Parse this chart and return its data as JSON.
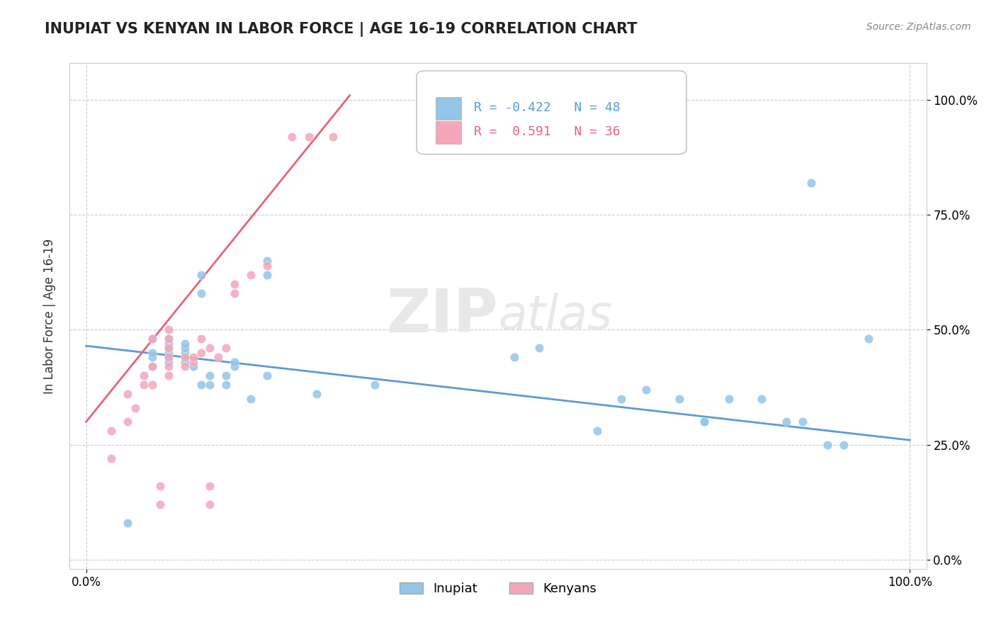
{
  "title": "INUPIAT VS KENYAN IN LABOR FORCE | AGE 16-19 CORRELATION CHART",
  "source": "Source: ZipAtlas.com",
  "ylabel": "In Labor Force | Age 16-19",
  "xlim": [
    -0.02,
    1.02
  ],
  "ylim": [
    -0.02,
    1.08
  ],
  "xtick_positions": [
    0.0,
    1.0
  ],
  "xtick_labels": [
    "0.0%",
    "100.0%"
  ],
  "ytick_positions": [
    0.0,
    0.25,
    0.5,
    0.75,
    1.0
  ],
  "ytick_labels": [
    "0.0%",
    "25.0%",
    "50.0%",
    "75.0%",
    "100.0%"
  ],
  "inupiat_R": "-0.422",
  "inupiat_N": "48",
  "kenyan_R": "0.591",
  "kenyan_N": "36",
  "inupiat_color": "#92C5E8",
  "kenyan_color": "#F4A7B9",
  "inupiat_line_color": "#5B9BD5",
  "kenyan_line_color": "#E8627A",
  "watermark_zip": "ZIP",
  "watermark_atlas": "atlas",
  "background_color": "#FFFFFF",
  "inupiat_scatter_x": [
    0.05,
    0.14,
    0.22,
    0.22,
    0.14,
    0.08,
    0.08,
    0.08,
    0.08,
    0.1,
    0.1,
    0.1,
    0.1,
    0.1,
    0.1,
    0.12,
    0.12,
    0.12,
    0.12,
    0.12,
    0.13,
    0.14,
    0.15,
    0.15,
    0.17,
    0.17,
    0.18,
    0.18,
    0.2,
    0.22,
    0.28,
    0.35,
    0.52,
    0.55,
    0.62,
    0.65,
    0.68,
    0.72,
    0.75,
    0.75,
    0.78,
    0.82,
    0.85,
    0.87,
    0.88,
    0.9,
    0.92,
    0.95
  ],
  "inupiat_scatter_y": [
    0.08,
    0.62,
    0.62,
    0.65,
    0.58,
    0.42,
    0.44,
    0.45,
    0.48,
    0.43,
    0.44,
    0.45,
    0.46,
    0.47,
    0.48,
    0.43,
    0.44,
    0.45,
    0.46,
    0.47,
    0.42,
    0.38,
    0.38,
    0.4,
    0.38,
    0.4,
    0.42,
    0.43,
    0.35,
    0.4,
    0.36,
    0.38,
    0.44,
    0.46,
    0.28,
    0.35,
    0.37,
    0.35,
    0.3,
    0.3,
    0.35,
    0.35,
    0.3,
    0.3,
    0.82,
    0.25,
    0.25,
    0.48
  ],
  "kenyan_scatter_x": [
    0.03,
    0.03,
    0.05,
    0.05,
    0.06,
    0.07,
    0.07,
    0.08,
    0.08,
    0.08,
    0.09,
    0.09,
    0.1,
    0.1,
    0.1,
    0.1,
    0.1,
    0.1,
    0.12,
    0.12,
    0.13,
    0.13,
    0.14,
    0.14,
    0.15,
    0.15,
    0.15,
    0.16,
    0.17,
    0.18,
    0.18,
    0.2,
    0.22,
    0.25,
    0.27,
    0.3
  ],
  "kenyan_scatter_y": [
    0.22,
    0.28,
    0.3,
    0.36,
    0.33,
    0.38,
    0.4,
    0.38,
    0.42,
    0.48,
    0.12,
    0.16,
    0.4,
    0.42,
    0.44,
    0.46,
    0.48,
    0.5,
    0.42,
    0.44,
    0.43,
    0.44,
    0.45,
    0.48,
    0.12,
    0.16,
    0.46,
    0.44,
    0.46,
    0.58,
    0.6,
    0.62,
    0.64,
    0.92,
    0.92,
    0.92
  ],
  "inupiat_trendline_x": [
    0.0,
    1.0
  ],
  "inupiat_trendline_y": [
    0.465,
    0.26
  ],
  "kenyan_trendline_x": [
    0.0,
    0.32
  ],
  "kenyan_trendline_y": [
    0.3,
    1.01
  ]
}
